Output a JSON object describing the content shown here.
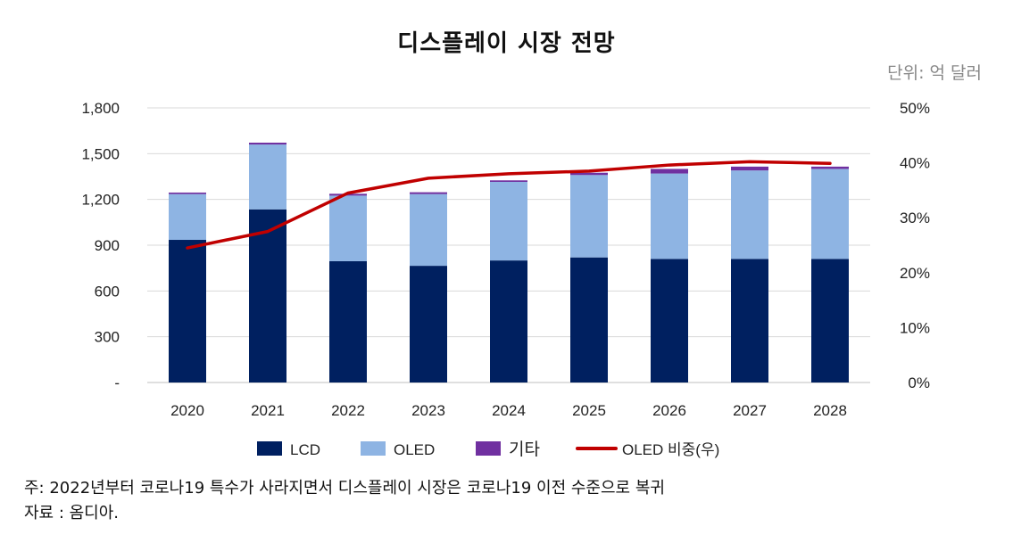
{
  "chart_data": {
    "type": "bar",
    "stacked": true,
    "title": "디스플레이 시장 전망",
    "unit": "단위: 억 달러",
    "categories": [
      "2020",
      "2021",
      "2022",
      "2023",
      "2024",
      "2025",
      "2026",
      "2027",
      "2028"
    ],
    "ylim": [
      0,
      1800
    ],
    "yticks": [
      "-",
      "300",
      "600",
      "900",
      "1,200",
      "1,500",
      "1,800"
    ],
    "y2lim": [
      0,
      50
    ],
    "y2ticks": [
      "0%",
      "10%",
      "20%",
      "30%",
      "40%",
      "50%"
    ],
    "series": [
      {
        "name": "LCD",
        "type": "bar",
        "axis": "left",
        "color": "#002060",
        "values": [
          935,
          1135,
          795,
          765,
          800,
          820,
          810,
          810,
          810
        ]
      },
      {
        "name": "OLED",
        "type": "bar",
        "axis": "left",
        "color": "#8EB4E3",
        "values": [
          300,
          425,
          430,
          470,
          515,
          540,
          560,
          580,
          590
        ]
      },
      {
        "name": "기타",
        "type": "bar",
        "axis": "left",
        "color": "#7030A0",
        "values": [
          10,
          12,
          12,
          12,
          10,
          15,
          30,
          25,
          15
        ]
      },
      {
        "name": "OLED 비중(우)",
        "type": "line",
        "axis": "right",
        "color": "#C00000",
        "values": [
          24.5,
          27.5,
          34.5,
          37.2,
          38.0,
          38.5,
          39.6,
          40.2,
          39.9
        ]
      }
    ],
    "grid": true,
    "legend_position": "bottom"
  },
  "footnote": "주: 2022년부터 코로나19 특수가 사라지면서 디스플레이 시장은 코로나19 이전 수준으로 복귀",
  "source": "자료 : 옴디아."
}
